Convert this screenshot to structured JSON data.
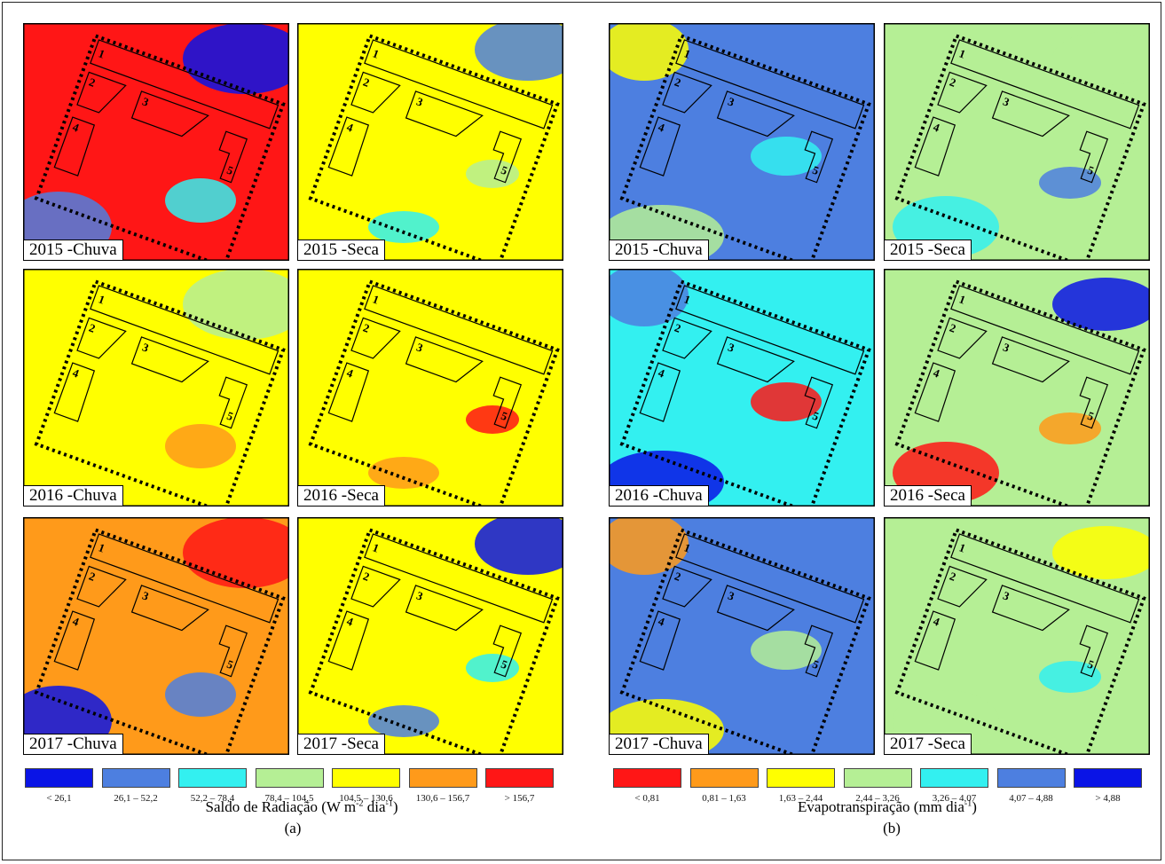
{
  "panels": {
    "a": {
      "maps": [
        [
          "2015 -Chuva",
          "2015 -Seca"
        ],
        [
          "2016 -Chuva",
          "2016 -Seca"
        ],
        [
          "2017 -Chuva",
          "2017 -Seca"
        ]
      ],
      "legend": [
        "< 26,1",
        "26,1 – 52,2",
        "52,2 – 78,4",
        "78,4 – 104,5",
        "104,5 – 130,6",
        "130,6 – 156,7",
        "> 156,7"
      ],
      "legend_colors": [
        "#0a14e6",
        "#4d7fe0",
        "#33f0f0",
        "#b5ef95",
        "#ffff00",
        "#ff9a1a",
        "#ff1616"
      ],
      "title_main": "Saldo de Radiação (W m",
      "title_sup1": "-2",
      "title_mid": " dia",
      "title_sup2": "-1",
      "title_end": ")",
      "sub": "(a)"
    },
    "b": {
      "maps": [
        [
          "2015 -Chuva",
          "2015 -Seca"
        ],
        [
          "2016 -Chuva",
          "2016 -Seca"
        ],
        [
          "2017 -Chuva",
          "2017 -Seca"
        ]
      ],
      "legend": [
        "< 0,81",
        "0,81 – 1,63",
        "1,63 – 2,44",
        "2,44 – 3,26",
        "3,26 – 4,07",
        "4,07 – 4,88",
        "> 4,88"
      ],
      "legend_colors": [
        "#ff1616",
        "#ff9a1a",
        "#ffff00",
        "#b5ef95",
        "#33f0f0",
        "#4d7fe0",
        "#0a14e6"
      ],
      "title_main": "Evapotranspiração (mm dia",
      "title_sup1": "-1",
      "title_end": ")",
      "sub": "(b)"
    }
  },
  "plot_numbers": [
    "1",
    "2",
    "3",
    "4",
    "5"
  ],
  "map_colors": [
    [
      "#ff1616",
      "#ffff00",
      "#4d7fe0",
      "#b5ef95"
    ],
    [
      "#ffff00",
      "#ffff00",
      "#33f0f0",
      "#b5ef95"
    ],
    [
      "#ff9a1a",
      "#ffff00",
      "#4d7fe0",
      "#b5ef95"
    ]
  ]
}
